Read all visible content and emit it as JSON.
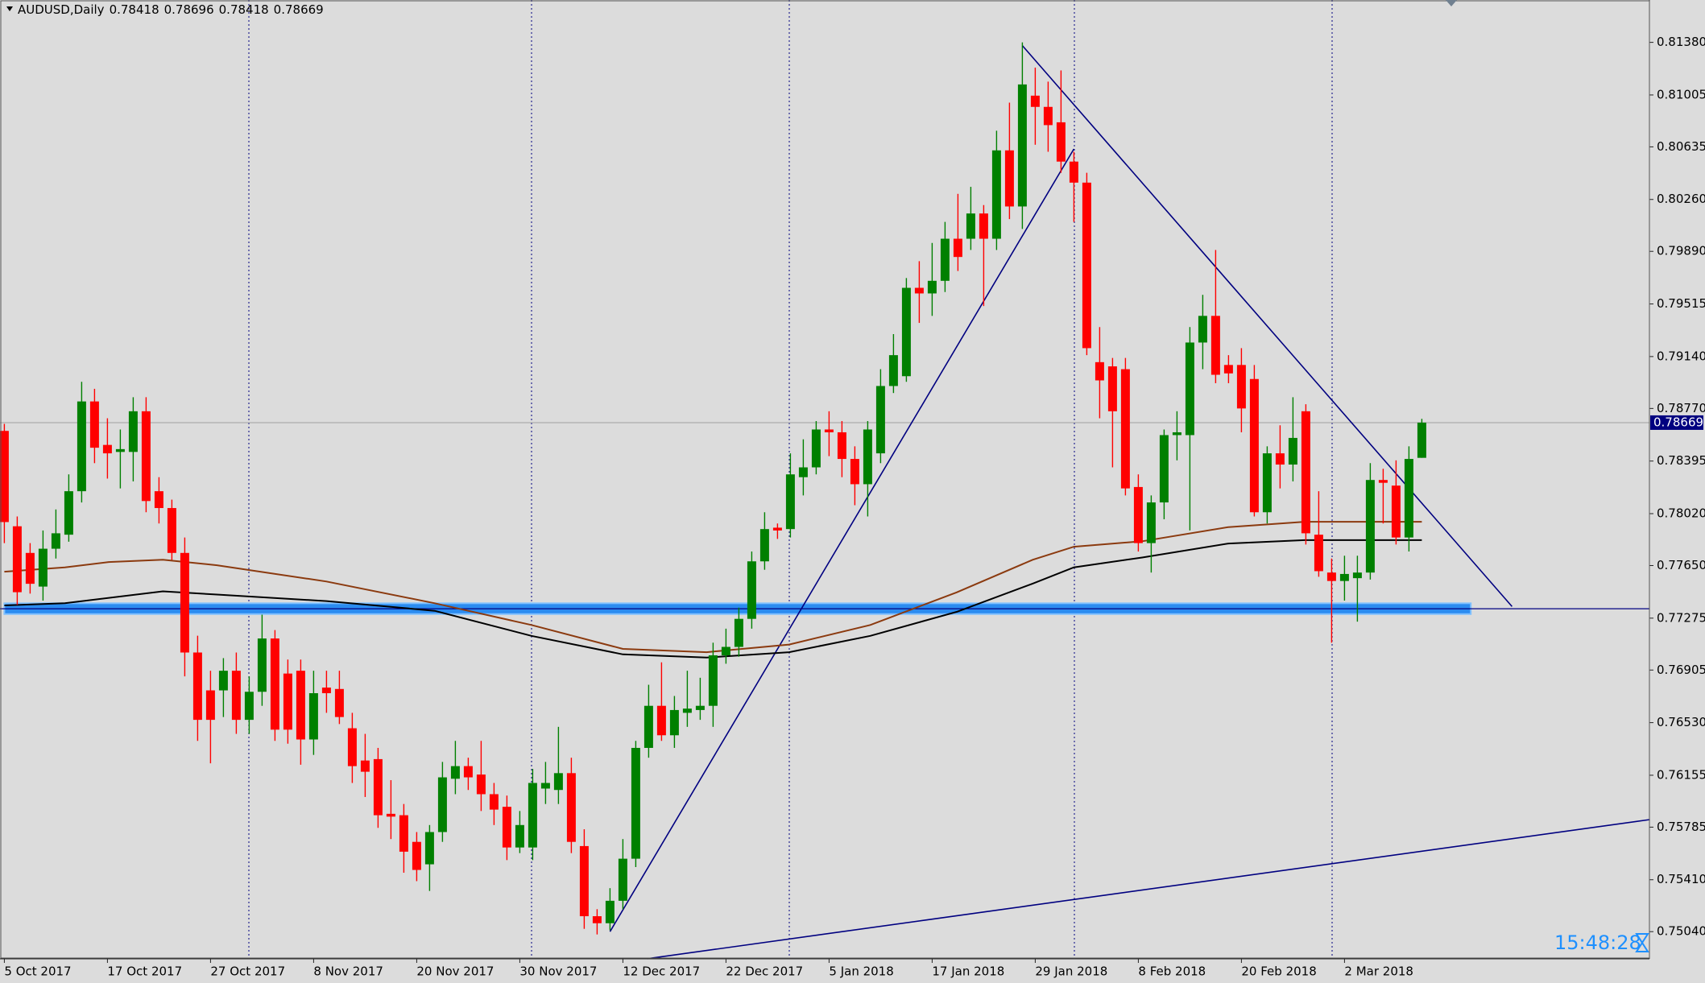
{
  "chart_data": {
    "type": "candlestick",
    "symbol": "AUDUSD,Daily",
    "server_time": "15:48:28",
    "bull_color": "#008000",
    "bear_color": "#ff0000",
    "categories": [
      "5 Oct 2017",
      null,
      null,
      null,
      null,
      null,
      null,
      null,
      "17 Oct 2017",
      null,
      null,
      null,
      null,
      null,
      null,
      null,
      "27 Oct 2017",
      null,
      null,
      null,
      null,
      null,
      null,
      null,
      "8 Nov 2017",
      null,
      null,
      null,
      null,
      null,
      null,
      null,
      "20 Nov 2017",
      null,
      null,
      null,
      null,
      null,
      null,
      null,
      "30 Nov 2017",
      null,
      null,
      null,
      null,
      null,
      null,
      null,
      "12 Dec 2017",
      null,
      null,
      null,
      null,
      null,
      null,
      null,
      "22 Dec 2017",
      null,
      null,
      null,
      null,
      null,
      null,
      null,
      "5 Jan 2018",
      null,
      null,
      null,
      null,
      null,
      null,
      null,
      "17 Jan 2018",
      null,
      null,
      null,
      null,
      null,
      null,
      null,
      "29 Jan 2018",
      null,
      null,
      null,
      null,
      null,
      null,
      null,
      "8 Feb 2018",
      null,
      null,
      null,
      null,
      null,
      null,
      null,
      "20 Feb 2018",
      null,
      null,
      null,
      null,
      null,
      null,
      null,
      "2 Mar 2018",
      null,
      null,
      null,
      null,
      null,
      null
    ],
    "open": [
      0.7861,
      0.7793,
      0.7774,
      0.775,
      0.7777,
      0.7787,
      0.7818,
      0.7882,
      0.7851,
      0.7846,
      0.7846,
      0.7875,
      0.7818,
      0.7806,
      0.7774,
      0.7703,
      0.7676,
      0.7676,
      0.769,
      0.7655,
      0.7675,
      0.7713,
      0.7688,
      0.769,
      0.7641,
      0.7678,
      0.7677,
      0.7649,
      0.7626,
      0.7627,
      0.7588,
      0.7587,
      0.7568,
      0.7552,
      0.7575,
      0.7613,
      0.7622,
      0.7616,
      0.7602,
      0.7593,
      0.7564,
      0.7564,
      0.7606,
      0.7605,
      0.7617,
      0.7565,
      0.7515,
      0.751,
      0.7526,
      0.7556,
      0.7635,
      0.7665,
      0.7644,
      0.766,
      0.7662,
      0.7665,
      0.7701,
      0.7707,
      0.7727,
      0.7768,
      0.7792,
      0.7791,
      0.7828,
      0.7835,
      0.7862,
      0.786,
      0.7841,
      0.7823,
      0.7845,
      0.7893,
      0.79,
      0.7963,
      0.7959,
      0.7968,
      0.7998,
      0.7998,
      0.8016,
      0.7998,
      0.8061,
      0.8021,
      0.81,
      0.8092,
      0.8081,
      0.8053,
      0.8038,
      0.791,
      0.7907,
      0.7905,
      0.7821,
      0.7781,
      0.781,
      0.7858,
      0.7858,
      0.7924,
      0.7943,
      0.7908,
      0.7908,
      0.7898,
      0.7803,
      0.7845,
      0.7837,
      0.7875,
      0.7787,
      0.776,
      0.7754,
      0.7756,
      0.776,
      0.7826,
      0.7822,
      0.7785,
      0.78418
    ],
    "high": [
      0.7866,
      0.78,
      0.7781,
      0.779,
      0.7805,
      0.783,
      0.7896,
      0.7891,
      0.787,
      0.7862,
      0.7885,
      0.7885,
      0.7828,
      0.7812,
      0.7785,
      0.7715,
      0.769,
      0.7699,
      0.7703,
      0.7686,
      0.773,
      0.7719,
      0.7698,
      0.7698,
      0.769,
      0.769,
      0.769,
      0.766,
      0.7645,
      0.7635,
      0.7612,
      0.7595,
      0.7575,
      0.758,
      0.7625,
      0.764,
      0.7628,
      0.764,
      0.761,
      0.7601,
      0.759,
      0.762,
      0.7625,
      0.765,
      0.7628,
      0.7577,
      0.752,
      0.7535,
      0.757,
      0.764,
      0.768,
      0.7696,
      0.7672,
      0.769,
      0.7685,
      0.771,
      0.772,
      0.7735,
      0.7775,
      0.7803,
      0.7795,
      0.7845,
      0.7855,
      0.7868,
      0.7875,
      0.7868,
      0.785,
      0.7868,
      0.7905,
      0.793,
      0.797,
      0.7982,
      0.7995,
      0.801,
      0.803,
      0.8035,
      0.8022,
      0.8075,
      0.8095,
      0.8138,
      0.812,
      0.811,
      0.8118,
      0.806,
      0.8045,
      0.7935,
      0.7913,
      0.7913,
      0.783,
      0.7815,
      0.7862,
      0.7875,
      0.7935,
      0.7958,
      0.799,
      0.7915,
      0.792,
      0.7908,
      0.785,
      0.7865,
      0.7885,
      0.788,
      0.7818,
      0.777,
      0.7772,
      0.7772,
      0.7838,
      0.7834,
      0.784,
      0.785,
      0.78696
    ],
    "low": [
      0.7781,
      0.7737,
      0.7745,
      0.774,
      0.777,
      0.7782,
      0.781,
      0.7838,
      0.7827,
      0.782,
      0.7825,
      0.7803,
      0.7795,
      0.7769,
      0.7686,
      0.764,
      0.7624,
      0.7657,
      0.7645,
      0.7645,
      0.7665,
      0.764,
      0.7638,
      0.7623,
      0.763,
      0.766,
      0.7652,
      0.761,
      0.76,
      0.7578,
      0.757,
      0.7546,
      0.754,
      0.7533,
      0.7568,
      0.7602,
      0.7605,
      0.759,
      0.758,
      0.7555,
      0.756,
      0.7555,
      0.7595,
      0.7595,
      0.756,
      0.7506,
      0.7502,
      0.7505,
      0.752,
      0.755,
      0.7628,
      0.764,
      0.7635,
      0.765,
      0.7655,
      0.765,
      0.7695,
      0.77,
      0.772,
      0.7762,
      0.7784,
      0.7785,
      0.7815,
      0.783,
      0.7843,
      0.7828,
      0.7808,
      0.78,
      0.7838,
      0.7888,
      0.7896,
      0.7938,
      0.7943,
      0.796,
      0.7975,
      0.799,
      0.795,
      0.799,
      0.8012,
      0.8005,
      0.8065,
      0.806,
      0.8045,
      0.801,
      0.7915,
      0.787,
      0.7835,
      0.7815,
      0.7775,
      0.776,
      0.7798,
      0.784,
      0.779,
      0.7905,
      0.7895,
      0.7895,
      0.786,
      0.78,
      0.7795,
      0.782,
      0.7825,
      0.778,
      0.7757,
      0.771,
      0.774,
      0.7725,
      0.7755,
      0.7795,
      0.778,
      0.7775,
      0.78418
    ],
    "close": [
      0.7796,
      0.7746,
      0.7752,
      0.7777,
      0.7788,
      0.7818,
      0.7882,
      0.7849,
      0.7845,
      0.7848,
      0.7875,
      0.7811,
      0.7806,
      0.7774,
      0.7703,
      0.7655,
      0.7655,
      0.769,
      0.7655,
      0.7675,
      0.7713,
      0.7648,
      0.7648,
      0.7641,
      0.7674,
      0.7674,
      0.7657,
      0.7622,
      0.7618,
      0.7587,
      0.7586,
      0.7561,
      0.7548,
      0.7575,
      0.7614,
      0.7622,
      0.7614,
      0.7602,
      0.7591,
      0.7564,
      0.758,
      0.761,
      0.761,
      0.7617,
      0.7568,
      0.7515,
      0.751,
      0.7526,
      0.7556,
      0.7635,
      0.7665,
      0.7644,
      0.7662,
      0.7663,
      0.7665,
      0.7701,
      0.7707,
      0.7727,
      0.7768,
      0.7791,
      0.779,
      0.783,
      0.7835,
      0.7862,
      0.786,
      0.7841,
      0.7823,
      0.7862,
      0.7893,
      0.7915,
      0.7963,
      0.7959,
      0.7968,
      0.7998,
      0.7985,
      0.8016,
      0.7998,
      0.8061,
      0.8021,
      0.8108,
      0.8092,
      0.8079,
      0.8053,
      0.8038,
      0.792,
      0.7897,
      0.7875,
      0.782,
      0.7781,
      0.781,
      0.7858,
      0.786,
      0.7924,
      0.7943,
      0.7901,
      0.7902,
      0.7877,
      0.7803,
      0.7845,
      0.7837,
      0.7856,
      0.7788,
      0.7761,
      0.7754,
      0.7759,
      0.776,
      0.7826,
      0.7824,
      0.7785,
      0.7841,
      0.78669
    ],
    "ma_lines": [
      {
        "color": "#8b3a0f",
        "x": [
          0,
          4.7,
          8.1,
          12.3,
          16.5,
          25,
          33.4,
          40.9,
          48,
          54.5,
          60.9,
          67.2,
          73.9,
          79.8,
          83,
          88.3,
          95,
          100.9,
          110
        ],
        "values": [
          0.77606,
          0.77637,
          0.77675,
          0.77691,
          0.77652,
          0.77536,
          0.77381,
          0.77226,
          0.77056,
          0.77032,
          0.77087,
          0.77226,
          0.77459,
          0.77691,
          0.77784,
          0.77823,
          0.77924,
          0.77962,
          0.77962
        ]
      },
      {
        "color": "#000000",
        "x": [
          0,
          4.7,
          12.3,
          16.5,
          25,
          33.4,
          40.9,
          48,
          54.5,
          60.9,
          67.2,
          73.9,
          79.8,
          83,
          88.3,
          95,
          100.9,
          110
        ],
        "values": [
          0.77366,
          0.77381,
          0.77466,
          0.77443,
          0.77397,
          0.77327,
          0.77149,
          0.77017,
          0.76994,
          0.77032,
          0.77149,
          0.7732,
          0.77521,
          0.77637,
          0.77707,
          0.77807,
          0.77831,
          0.77831
        ]
      }
    ],
    "trend_lines": [
      {
        "color": "#000080",
        "x": [
          47,
          83
        ],
        "values": [
          0.7504,
          0.8062
        ]
      },
      {
        "color": "#000080",
        "x": [
          79,
          117
        ],
        "values": [
          0.81357,
          0.77358
        ]
      },
      {
        "color": "#000080",
        "x": [
          49.9,
          127.7
        ],
        "values": [
          0.74847,
          0.75839
        ]
      }
    ],
    "hline": {
      "color": "#000080",
      "value": 0.77342
    },
    "zone": {
      "color": "#2b8cf0",
      "x": [
        0,
        113.8
      ],
      "values": [
        0.77304,
        0.77381
      ]
    },
    "ylim": [
      0.74846,
      0.81682
    ],
    "yticks": [
      {
        "value": 0.8138,
        "label": "0.81380"
      },
      0.81005,
      0.80635,
      {
        "value": 0.8026,
        "label": "0.80260"
      },
      {
        "value": 0.7989,
        "label": "0.79890"
      },
      0.79515,
      {
        "value": 0.7914,
        "label": "0.79140"
      },
      {
        "value": 0.7877,
        "label": "0.78770"
      },
      0.78395,
      {
        "value": 0.7802,
        "label": "0.78020"
      },
      {
        "value": 0.7765,
        "label": "0.77650"
      },
      0.77275,
      0.76905,
      {
        "value": 0.7653,
        "label": "0.76530"
      },
      0.76155,
      0.75785,
      {
        "value": 0.7541,
        "label": "0.75410"
      },
      {
        "value": 0.7504,
        "label": "0.75040"
      }
    ]
  }
}
